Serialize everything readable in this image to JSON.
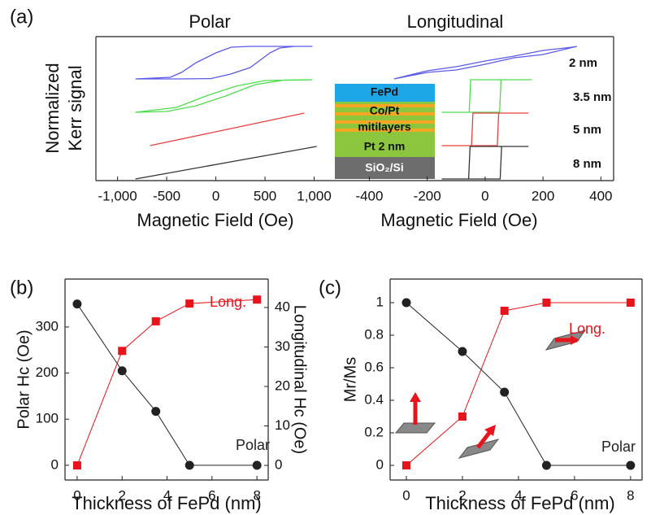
{
  "chart_data": [
    {
      "type": "line",
      "panel_label": "(a)",
      "title": "Polar",
      "xlabel": "Magnetic Field (Oe)",
      "ylabel_lines": [
        "Normalized",
        "Kerr signal"
      ],
      "xlim": [
        -1220,
        1070
      ],
      "xticks": [
        {
          "value": -1000,
          "label": "-1,000"
        },
        -500,
        0,
        500,
        {
          "value": 1000,
          "label": "1,000"
        }
      ],
      "series": [
        {
          "color": "#5a5ae6",
          "x": [
            -818,
            -400,
            -50,
            150,
            350,
            550,
            650,
            800,
            983,
            650,
            350,
            157,
            0,
            -200,
            -350,
            -463,
            -818
          ],
          "values": [
            -1,
            -1,
            -0.98,
            -0.7,
            -0.3,
            0.6,
            0.9,
            1,
            1,
            1,
            1,
            0.95,
            0.6,
            0,
            -0.6,
            -0.9,
            -1
          ]
        },
        {
          "color": "#4ddc4d",
          "x": [
            -818,
            -500,
            -200,
            100,
            400,
            700,
            983,
            500,
            200,
            -100,
            -400,
            -818
          ],
          "values": [
            -1,
            -0.95,
            -0.6,
            0,
            0.7,
            0.98,
            1,
            0.95,
            0.6,
            0,
            -0.7,
            -1
          ]
        },
        {
          "color": "#e84040",
          "x": [
            -669,
            116,
            901
          ],
          "values": [
            -1,
            0,
            1
          ]
        },
        {
          "color": "#333333",
          "x": [
            -818,
            103,
            1025
          ],
          "values": [
            -1,
            0,
            1
          ]
        }
      ]
    },
    {
      "type": "line",
      "title": "Longitudinal",
      "xlabel": "Magnetic Field (Oe)",
      "xlim": [
        -567,
        444
      ],
      "xticks": [
        -400,
        -200,
        0,
        200,
        400
      ],
      "series": [
        {
          "name": "2 nm",
          "color": "#5a5ae6",
          "x": [
            -315,
            -200,
            -100,
            0,
            100,
            200,
            317,
            300,
            200,
            100,
            0,
            -100,
            -200,
            -315
          ],
          "values": [
            -1,
            -0.6,
            -0.45,
            -0.1,
            0.3,
            0.5,
            1,
            0.95,
            0.75,
            0.4,
            0.1,
            -0.25,
            -0.5,
            -1
          ]
        },
        {
          "name": "3.5 nm",
          "color": "#4ddc4d",
          "x": [
            -150,
            50,
            55,
            160,
            -50,
            -55,
            -150
          ],
          "values": [
            -1,
            -1,
            1,
            1,
            1,
            -1,
            -1
          ]
        },
        {
          "name": "5 nm",
          "color": "#e84040",
          "x": [
            -150,
            42,
            47,
            150,
            -42,
            -47,
            -150
          ],
          "values": [
            -1,
            -1,
            1,
            1,
            1,
            -1,
            -1
          ]
        },
        {
          "name": "8 nm",
          "color": "#333333",
          "x": [
            -150,
            52,
            57,
            150,
            -52,
            -57,
            -150
          ],
          "values": [
            -1,
            -1,
            1,
            1,
            1,
            -1,
            -1
          ]
        }
      ]
    },
    {
      "type": "line",
      "panel_label": "(b)",
      "xlabel": "Thickness of FePd (nm)",
      "ylabel": "Polar Hc (Oe)",
      "y2label": "Longitudinal Hc (Oe)",
      "x": [
        0,
        2,
        3.5,
        5,
        8
      ],
      "xlim": [
        -0.54,
        8.5
      ],
      "xticks": [
        0,
        2,
        4,
        6,
        8
      ],
      "ylim": [
        -32,
        404
      ],
      "yticks": [
        0,
        100,
        200,
        300
      ],
      "y2lim": [
        -3.7,
        47.2
      ],
      "y2ticks": [
        0,
        10,
        20,
        30,
        40
      ],
      "series": [
        {
          "name": "Polar",
          "color": "#222222",
          "marker": "circle",
          "values": [
            350,
            205,
            117,
            0,
            0
          ]
        },
        {
          "name": "Long.",
          "color": "#e8141b",
          "marker": "square",
          "axis": "y2",
          "values": [
            0,
            29,
            36.5,
            41,
            42
          ]
        }
      ]
    },
    {
      "type": "line",
      "panel_label": "(c)",
      "xlabel": "Thickness of FePd (nm)",
      "ylabel": "Mr/Ms",
      "x": [
        0,
        2,
        3.5,
        5,
        8
      ],
      "xlim": [
        -0.58,
        8.41
      ],
      "xticks": [
        0,
        2,
        4,
        6,
        8
      ],
      "ylim": [
        -0.09,
        1.145
      ],
      "yticks": [
        0,
        0.2,
        0.4,
        0.6,
        0.8,
        1
      ],
      "series": [
        {
          "name": "Polar",
          "color": "#222222",
          "marker": "circle",
          "values": [
            1,
            0.7,
            0.45,
            0,
            0
          ]
        },
        {
          "name": "Long.",
          "color": "#e8141b",
          "marker": "square",
          "values": [
            0,
            0.3,
            0.95,
            1,
            1
          ]
        }
      ]
    }
  ],
  "inset": {
    "layers": [
      "FePd",
      "Co/Pt",
      "mitilayers",
      "Pt 2 nm",
      "SiO₂/Si"
    ]
  }
}
